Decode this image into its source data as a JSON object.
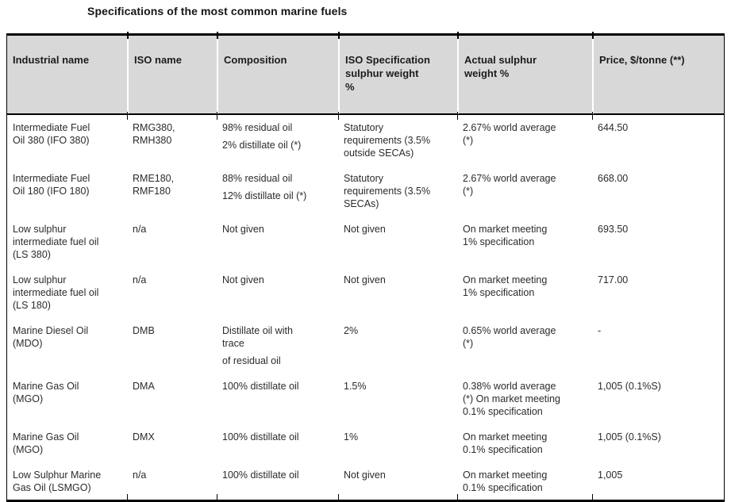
{
  "title": "Specifications of the most common marine fuels",
  "colors": {
    "page_bg": "#ffffff",
    "header_bg": "#d8d8d8",
    "border": "#000000",
    "text": "#2b2b2b"
  },
  "table": {
    "columns": [
      "Industrial name",
      "ISO name",
      "Composition",
      "ISO Specification\nsulphur weight\n%",
      "Actual sulphur\nweight %",
      "Price, $/tonne (**)"
    ],
    "rows": [
      [
        [
          "Intermediate Fuel\nOil 380 (IFO 380)"
        ],
        [
          "RMG380,\nRMH380"
        ],
        [
          "98% residual oil",
          "2% distillate oil (*)"
        ],
        [
          "Statutory\nrequirements (3.5%\noutside SECAs)"
        ],
        [
          "2.67% world average\n(*)"
        ],
        [
          "644.50"
        ]
      ],
      [
        [
          "Intermediate Fuel\nOil 180 (IFO 180)"
        ],
        [
          "RME180,\nRMF180"
        ],
        [
          "88% residual oil",
          "12% distillate oil (*)"
        ],
        [
          "Statutory\nrequirements (3.5%\nSECAs)"
        ],
        [
          "2.67% world average\n(*)"
        ],
        [
          "668.00"
        ]
      ],
      [
        [
          "Low sulphur\nintermediate fuel oil\n(LS 380)"
        ],
        [
          "n/a"
        ],
        [
          "Not given"
        ],
        [
          "Not given"
        ],
        [
          "On market meeting\n1% specification"
        ],
        [
          "693.50"
        ]
      ],
      [
        [
          "Low sulphur\nintermediate fuel oil\n(LS 180)"
        ],
        [
          "n/a"
        ],
        [
          "Not given"
        ],
        [
          "Not given"
        ],
        [
          "On market meeting\n1% specification"
        ],
        [
          "717.00"
        ]
      ],
      [
        [
          "Marine Diesel Oil\n(MDO)"
        ],
        [
          "DMB"
        ],
        [
          "Distillate oil with\ntrace",
          "of residual oil"
        ],
        [
          "2%"
        ],
        [
          "0.65% world average\n(*)"
        ],
        [
          "-"
        ]
      ],
      [
        [
          "Marine Gas Oil\n(MGO)"
        ],
        [
          "DMA"
        ],
        [
          "100% distillate oil"
        ],
        [
          "1.5%"
        ],
        [
          "0.38% world average\n(*) On market meeting\n0.1% specification"
        ],
        [
          "1,005 (0.1%S)"
        ]
      ],
      [
        [
          "Marine Gas Oil\n(MGO)"
        ],
        [
          "DMX"
        ],
        [
          "100% distillate oil"
        ],
        [
          "1%"
        ],
        [
          "On market meeting\n0.1% specification"
        ],
        [
          "1,005 (0.1%S)"
        ]
      ],
      [
        [
          "Low Sulphur Marine\nGas Oil (LSMGO)"
        ],
        [
          "n/a"
        ],
        [
          "100% distillate oil"
        ],
        [
          "Not given"
        ],
        [
          "On market meeting\n0.1% specification"
        ],
        [
          "1,005"
        ]
      ]
    ]
  }
}
